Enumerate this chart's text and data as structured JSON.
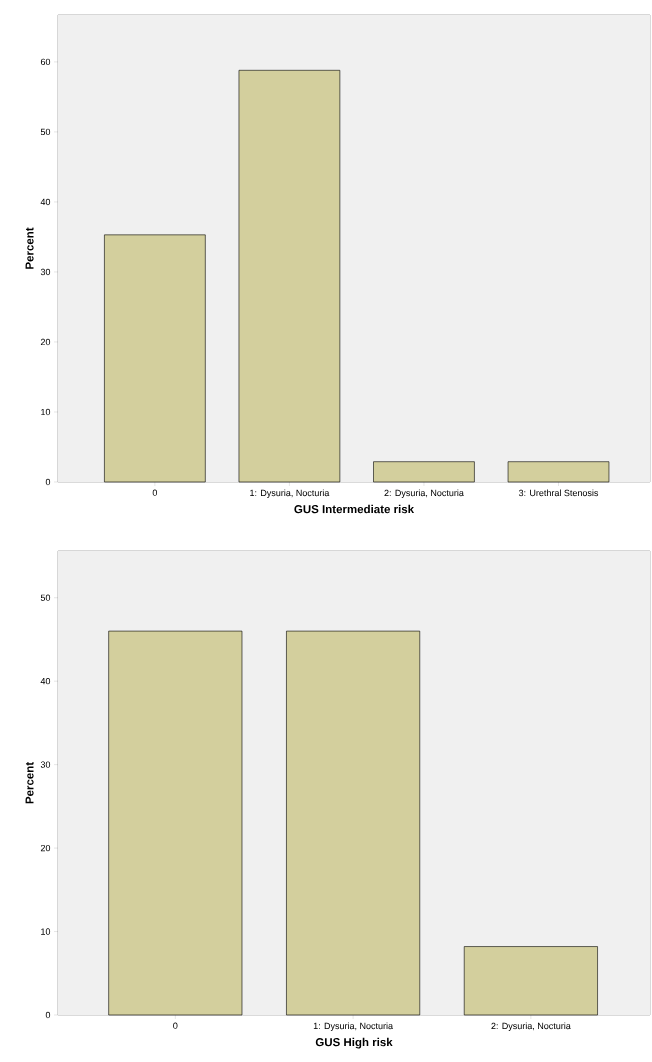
{
  "chart_data": [
    {
      "type": "bar",
      "categories": [
        "0",
        "1: Dysuria, Nocturia",
        "2: Dysuria, Nocturia",
        "3: Urethral Stenosis"
      ],
      "values": [
        35.3,
        58.8,
        2.9,
        2.9
      ],
      "color": "#d3cf9d",
      "xlabel": "GUS Intermediate risk",
      "ylabel": "Percent",
      "ylim": [
        0,
        66.7
      ],
      "yticks": [
        0,
        10,
        20,
        30,
        40,
        50,
        60
      ]
    },
    {
      "type": "bar",
      "categories": [
        "0",
        "1: Dysuria, Nocturia",
        "2: Dysuria, Nocturia"
      ],
      "values": [
        46.0,
        46.0,
        8.2
      ],
      "color": "#d3cf9d",
      "xlabel": "GUS High risk",
      "ylabel": "Percent",
      "ylim": [
        0,
        55.6
      ],
      "yticks": [
        0,
        10,
        20,
        30,
        40,
        50
      ]
    }
  ]
}
